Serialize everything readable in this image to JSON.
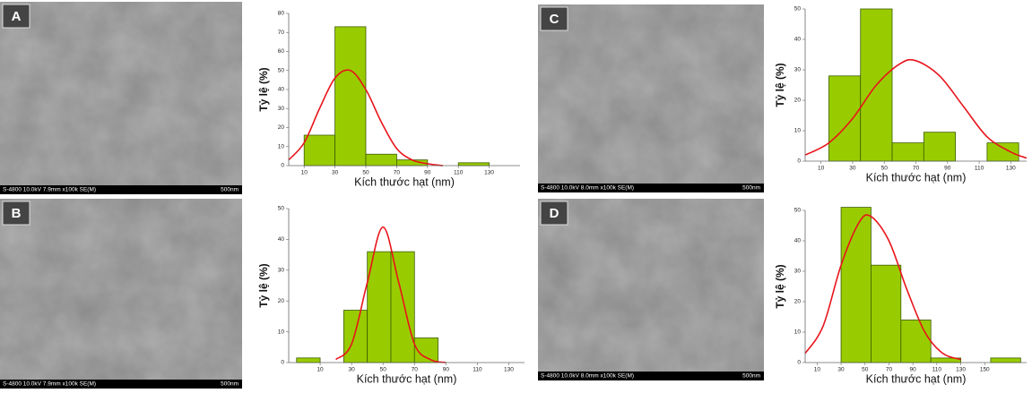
{
  "panels": [
    {
      "label": "A",
      "info": "S-4800 10.0kV 7.9mm x100k SE(M)",
      "scale": "500nm"
    },
    {
      "label": "B",
      "info": "S-4800 10.0kV 7.9mm x100k SE(M)",
      "scale": "500nm"
    },
    {
      "label": "C",
      "info": "S-4800 10.0kV 8.0mm x100k SE(M)",
      "scale": "500nm"
    },
    {
      "label": "D",
      "info": "S-4800 10.0kV 8.0mm x100k SE(M)",
      "scale": "500nm"
    }
  ],
  "chart_data": [
    {
      "type": "histogram",
      "xlabel": "Kích thước hạt (nm)",
      "ylabel": "Tỷ lệ (%)",
      "color": "#99cc00",
      "bins": [
        10,
        30,
        50,
        70,
        90,
        110,
        130
      ],
      "values": [
        16,
        73,
        6,
        3,
        0,
        1.5
      ],
      "xlim": [
        0,
        150
      ],
      "ylim": [
        0,
        80
      ],
      "xticks": [
        10,
        30,
        50,
        70,
        90,
        110,
        130
      ],
      "yticks": [
        0,
        10,
        20,
        30,
        40,
        50,
        60,
        70,
        80
      ],
      "fit": {
        "color": "#e8141b",
        "x": [
          0,
          10,
          20,
          30,
          40,
          50,
          60,
          70,
          80,
          90,
          100
        ],
        "values": [
          3,
          12,
          30,
          46,
          50,
          40,
          23,
          9,
          3,
          1,
          0
        ]
      }
    },
    {
      "type": "histogram",
      "xlabel": "Kích thước hạt (nm)",
      "ylabel": "Tỷ lệ (%)",
      "color": "#99cc00",
      "bins": [
        -5,
        10,
        25,
        40,
        55,
        70,
        85
      ],
      "values": [
        1.5,
        0,
        17,
        36,
        36,
        8
      ],
      "xlim": [
        -10,
        140
      ],
      "ylim": [
        0,
        50
      ],
      "xticks": [
        10,
        30,
        50,
        70,
        90,
        110,
        130
      ],
      "yticks": [
        0,
        10,
        20,
        30,
        40,
        50
      ],
      "fit": {
        "color": "#e8141b",
        "x": [
          20,
          30,
          40,
          50,
          60,
          70,
          80,
          90
        ],
        "values": [
          1,
          6,
          26,
          44,
          26,
          6,
          1,
          0
        ]
      }
    },
    {
      "type": "histogram",
      "xlabel": "Kích thước hạt (nm)",
      "ylabel": "Tỷ lệ (%)",
      "color": "#99cc00",
      "bins": [
        15,
        35,
        55,
        75,
        95,
        115,
        135
      ],
      "values": [
        28,
        50,
        6,
        9.5,
        0,
        6
      ],
      "xlim": [
        0,
        140
      ],
      "ylim": [
        0,
        50
      ],
      "xticks": [
        10,
        30,
        50,
        70,
        90,
        110,
        130
      ],
      "yticks": [
        0,
        10,
        20,
        30,
        40,
        50
      ],
      "fit": {
        "color": "#e8141b",
        "x": [
          0,
          15,
          30,
          45,
          60,
          70,
          85,
          100,
          115,
          130,
          140
        ],
        "values": [
          2,
          6,
          14,
          25,
          32,
          33,
          28,
          18,
          8,
          3,
          1
        ]
      }
    },
    {
      "type": "histogram",
      "xlabel": "Kích thước hạt (nm)",
      "ylabel": "Tỷ lệ (%)",
      "color": "#99cc00",
      "bins": [
        30,
        55,
        80,
        105,
        130,
        155,
        180
      ],
      "values": [
        51,
        32,
        14,
        1.5,
        0,
        1.5
      ],
      "xlim": [
        0,
        185
      ],
      "ylim": [
        0,
        50
      ],
      "xticks": [
        10,
        30,
        50,
        70,
        90,
        110,
        130,
        150
      ],
      "yticks": [
        0,
        10,
        20,
        30,
        40,
        50
      ],
      "fit": {
        "color": "#e8141b",
        "x": [
          0,
          15,
          30,
          45,
          55,
          70,
          85,
          100,
          115,
          130
        ],
        "values": [
          3,
          12,
          32,
          46,
          48,
          40,
          24,
          10,
          3,
          1
        ]
      }
    }
  ]
}
